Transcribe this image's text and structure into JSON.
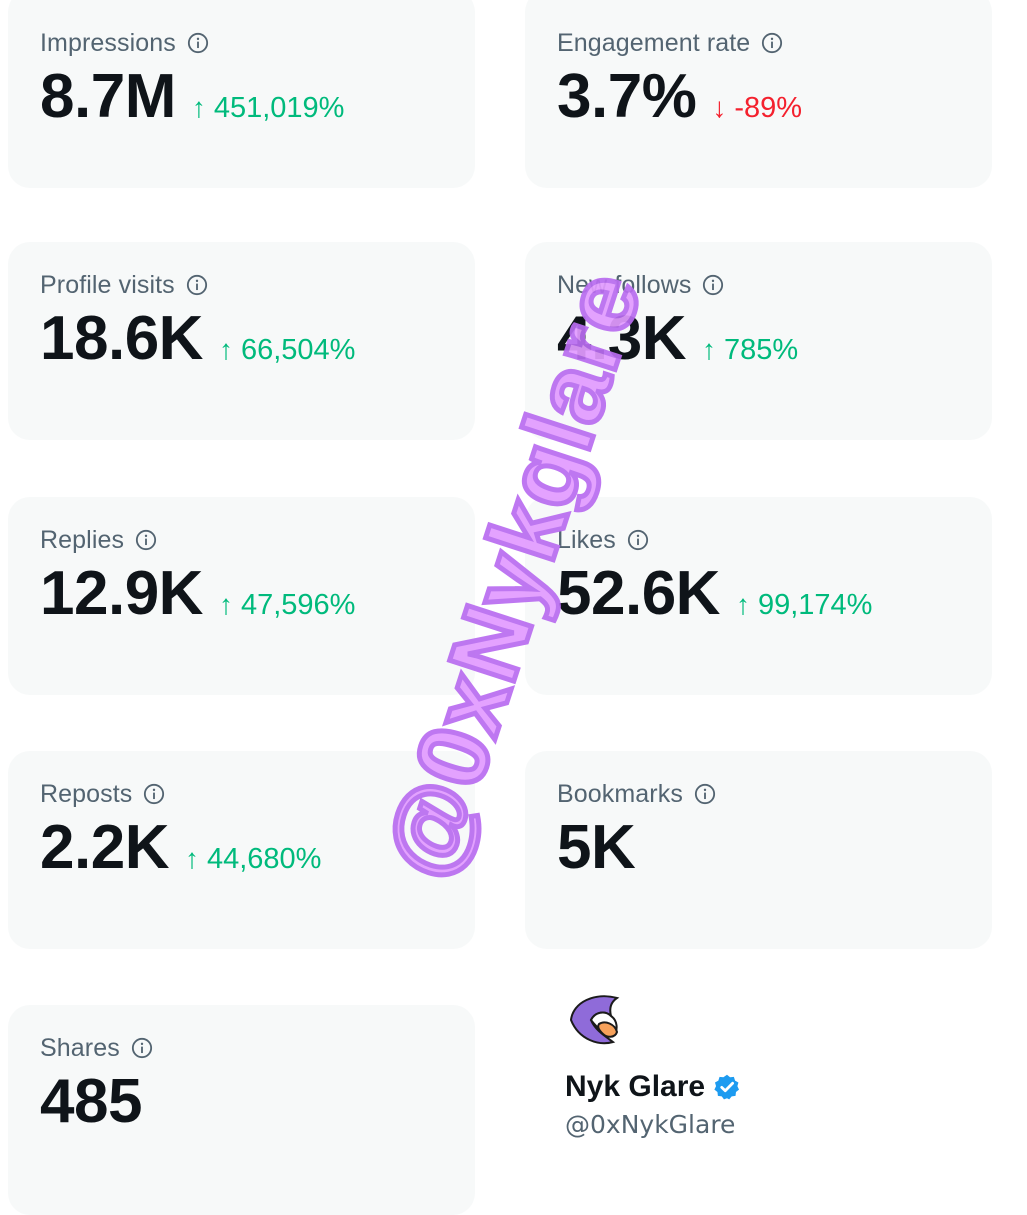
{
  "metrics": [
    {
      "label": "Impressions",
      "value": "8.7M",
      "delta": "451,019%",
      "direction": "up"
    },
    {
      "label": "Engagement rate",
      "value": "3.7%",
      "delta": "-89%",
      "direction": "down"
    },
    {
      "label": "Profile visits",
      "value": "18.6K",
      "delta": "66,504%",
      "direction": "up"
    },
    {
      "label": "New follows",
      "value": "4.3K",
      "delta": "785%",
      "direction": "up"
    },
    {
      "label": "Replies",
      "value": "12.9K",
      "delta": "47,596%",
      "direction": "up"
    },
    {
      "label": "Likes",
      "value": "52.6K",
      "delta": "99,174%",
      "direction": "up"
    },
    {
      "label": "Reposts",
      "value": "2.2K",
      "delta": "44,680%",
      "direction": "up"
    },
    {
      "label": "Bookmarks",
      "value": "5K",
      "delta": null,
      "direction": null
    },
    {
      "label": "Shares",
      "value": "485",
      "delta": null,
      "direction": null
    }
  ],
  "arrows": {
    "up": "↑",
    "down": "↓"
  },
  "profile": {
    "name": "Nyk Glare",
    "handle": "@0xNykGlare",
    "verified": true
  },
  "watermark": "@0xNykglare",
  "colors": {
    "positive": "#00ba7c",
    "negative": "#f4212e",
    "verified": "#1d9bf0",
    "watermark": "#e29bff"
  }
}
